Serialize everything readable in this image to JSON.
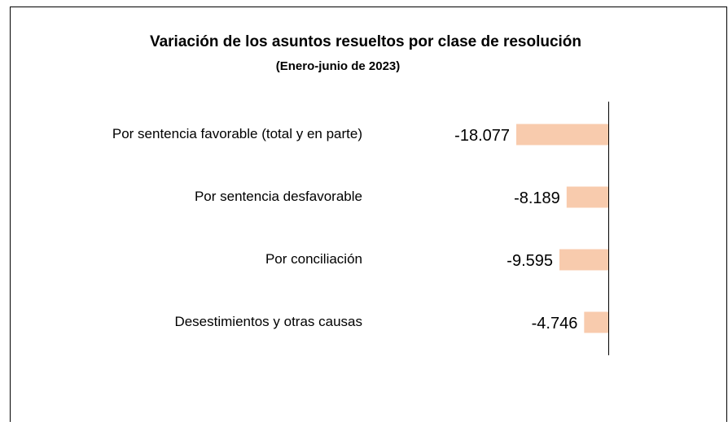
{
  "chart_data": {
    "type": "hbar",
    "title": "Variación de los asuntos resueltos por clase de resolución",
    "subtitle": "(Enero-junio de 2023)",
    "categories": [
      "Por sentencia favorable (total y en parte)",
      "Por sentencia desfavorable",
      "Por conciliación",
      "Desestimientos y otras causas"
    ],
    "values": [
      -18077,
      -8189,
      -9595,
      -4746
    ],
    "value_labels": [
      "-18.077",
      "-8.189",
      "-9.595",
      "-4.746"
    ],
    "color": "#f8cbad"
  }
}
